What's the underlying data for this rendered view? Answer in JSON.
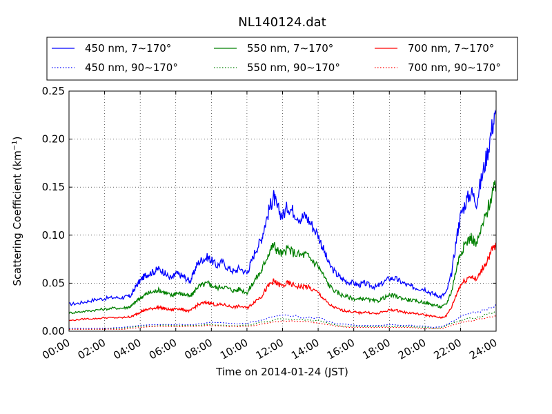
{
  "chart_data": {
    "type": "line",
    "title": "NL140124.dat",
    "xlabel": "Time on 2014-01-24 (JST)",
    "ylabel": "Scattering Coefficient (km",
    "ylabel_sup": "−1",
    "ylabel_end": ")",
    "xlim": [
      0,
      24
    ],
    "ylim": [
      0,
      0.25
    ],
    "grid": true,
    "legend_placement": "top, above plot, 3 columns",
    "x_ticks": [
      "00:00",
      "02:00",
      "04:00",
      "06:00",
      "08:00",
      "10:00",
      "12:00",
      "14:00",
      "16:00",
      "18:00",
      "20:00",
      "22:00",
      "24:00"
    ],
    "y_ticks": [
      "0.00",
      "0.05",
      "0.10",
      "0.15",
      "0.20",
      "0.25"
    ],
    "x_unit": "hours",
    "series": [
      {
        "name": "450 nm, 7∼170°",
        "color": "#0000ff",
        "style": "solid",
        "x": [
          0,
          0.5,
          1,
          1.5,
          2,
          2.5,
          3,
          3.3,
          3.5,
          3.7,
          3.9,
          4.1,
          4.3,
          4.5,
          4.8,
          5,
          5.3,
          5.5,
          5.8,
          6,
          6.3,
          6.5,
          6.8,
          7,
          7.2,
          7.5,
          7.8,
          8,
          8.3,
          8.6,
          9,
          9.3,
          9.6,
          10,
          10.2,
          10.5,
          10.8,
          11,
          11.3,
          11.5,
          11.7,
          12,
          12.3,
          12.6,
          13,
          13.3,
          13.6,
          14,
          14.3,
          14.6,
          15,
          15.3,
          15.6,
          16,
          16.3,
          16.6,
          17,
          17.3,
          17.6,
          18,
          18.3,
          18.6,
          19,
          19.3,
          19.6,
          20,
          20.3,
          20.6,
          20.9,
          21.2,
          21.5,
          21.8,
          22,
          22.3,
          22.6,
          22.9,
          23.2,
          23.5,
          23.8,
          24
        ],
        "y": [
          0.028,
          0.029,
          0.031,
          0.033,
          0.034,
          0.035,
          0.035,
          0.036,
          0.037,
          0.045,
          0.05,
          0.055,
          0.058,
          0.06,
          0.062,
          0.065,
          0.062,
          0.058,
          0.055,
          0.06,
          0.058,
          0.056,
          0.052,
          0.06,
          0.07,
          0.075,
          0.077,
          0.074,
          0.068,
          0.072,
          0.065,
          0.062,
          0.066,
          0.06,
          0.07,
          0.085,
          0.095,
          0.11,
          0.13,
          0.14,
          0.128,
          0.12,
          0.13,
          0.125,
          0.118,
          0.12,
          0.112,
          0.1,
          0.085,
          0.07,
          0.06,
          0.055,
          0.052,
          0.05,
          0.048,
          0.05,
          0.047,
          0.046,
          0.05,
          0.055,
          0.055,
          0.052,
          0.048,
          0.046,
          0.045,
          0.044,
          0.04,
          0.038,
          0.036,
          0.04,
          0.06,
          0.1,
          0.12,
          0.135,
          0.145,
          0.135,
          0.16,
          0.185,
          0.215,
          0.225
        ]
      },
      {
        "name": "550 nm, 7∼170°",
        "color": "#008000",
        "style": "solid",
        "x": [
          0,
          0.5,
          1,
          1.5,
          2,
          2.5,
          3,
          3.3,
          3.5,
          3.7,
          3.9,
          4.1,
          4.3,
          4.5,
          4.8,
          5,
          5.3,
          5.5,
          5.8,
          6,
          6.3,
          6.5,
          6.8,
          7,
          7.2,
          7.5,
          7.8,
          8,
          8.3,
          8.6,
          9,
          9.3,
          9.6,
          10,
          10.2,
          10.5,
          10.8,
          11,
          11.3,
          11.5,
          11.7,
          12,
          12.3,
          12.6,
          13,
          13.3,
          13.6,
          14,
          14.3,
          14.6,
          15,
          15.3,
          15.6,
          16,
          16.3,
          16.6,
          17,
          17.3,
          17.6,
          18,
          18.3,
          18.6,
          19,
          19.3,
          19.6,
          20,
          20.3,
          20.6,
          20.9,
          21.2,
          21.5,
          21.8,
          22,
          22.3,
          22.6,
          22.9,
          23.2,
          23.5,
          23.8,
          24
        ],
        "y": [
          0.019,
          0.02,
          0.021,
          0.022,
          0.023,
          0.024,
          0.024,
          0.025,
          0.026,
          0.03,
          0.033,
          0.036,
          0.038,
          0.04,
          0.041,
          0.043,
          0.041,
          0.039,
          0.037,
          0.04,
          0.039,
          0.038,
          0.036,
          0.04,
          0.046,
          0.048,
          0.05,
          0.048,
          0.045,
          0.047,
          0.044,
          0.042,
          0.044,
          0.04,
          0.046,
          0.055,
          0.062,
          0.072,
          0.085,
          0.09,
          0.084,
          0.08,
          0.086,
          0.082,
          0.079,
          0.08,
          0.075,
          0.068,
          0.058,
          0.048,
          0.041,
          0.038,
          0.036,
          0.034,
          0.033,
          0.034,
          0.032,
          0.031,
          0.034,
          0.037,
          0.037,
          0.035,
          0.033,
          0.032,
          0.031,
          0.03,
          0.028,
          0.027,
          0.025,
          0.028,
          0.042,
          0.068,
          0.082,
          0.092,
          0.098,
          0.09,
          0.108,
          0.125,
          0.145,
          0.15
        ]
      },
      {
        "name": "700 nm, 7∼170°",
        "color": "#ff0000",
        "style": "solid",
        "x": [
          0,
          0.5,
          1,
          1.5,
          2,
          2.5,
          3,
          3.3,
          3.5,
          3.7,
          3.9,
          4.1,
          4.3,
          4.5,
          4.8,
          5,
          5.3,
          5.5,
          5.8,
          6,
          6.3,
          6.5,
          6.8,
          7,
          7.2,
          7.5,
          7.8,
          8,
          8.3,
          8.6,
          9,
          9.3,
          9.6,
          10,
          10.2,
          10.5,
          10.8,
          11,
          11.3,
          11.5,
          11.7,
          12,
          12.3,
          12.6,
          13,
          13.3,
          13.6,
          14,
          14.3,
          14.6,
          15,
          15.3,
          15.6,
          16,
          16.3,
          16.6,
          17,
          17.3,
          17.6,
          18,
          18.3,
          18.6,
          19,
          19.3,
          19.6,
          20,
          20.3,
          20.6,
          20.9,
          21.2,
          21.5,
          21.8,
          22,
          22.3,
          22.6,
          22.9,
          23.2,
          23.5,
          23.8,
          24
        ],
        "y": [
          0.011,
          0.012,
          0.013,
          0.013,
          0.014,
          0.014,
          0.014,
          0.015,
          0.015,
          0.017,
          0.019,
          0.021,
          0.022,
          0.023,
          0.024,
          0.025,
          0.024,
          0.023,
          0.022,
          0.024,
          0.023,
          0.022,
          0.021,
          0.024,
          0.027,
          0.029,
          0.03,
          0.029,
          0.027,
          0.028,
          0.026,
          0.025,
          0.026,
          0.024,
          0.027,
          0.032,
          0.036,
          0.042,
          0.049,
          0.052,
          0.049,
          0.047,
          0.05,
          0.048,
          0.046,
          0.047,
          0.044,
          0.04,
          0.034,
          0.028,
          0.024,
          0.022,
          0.021,
          0.02,
          0.019,
          0.02,
          0.019,
          0.018,
          0.02,
          0.022,
          0.022,
          0.021,
          0.019,
          0.019,
          0.018,
          0.017,
          0.016,
          0.015,
          0.014,
          0.016,
          0.025,
          0.04,
          0.048,
          0.054,
          0.058,
          0.053,
          0.064,
          0.074,
          0.085,
          0.088
        ]
      },
      {
        "name": "450 nm, 90∼170°",
        "color": "#0000ff",
        "style": "dotted",
        "x": [
          0,
          2,
          3,
          4,
          5,
          6,
          7,
          8,
          9,
          10,
          11,
          12,
          13,
          14,
          15,
          16,
          17,
          18,
          19,
          20,
          20.5,
          21,
          21.5,
          22,
          22.5,
          23,
          23.5,
          24
        ],
        "y": [
          0.003,
          0.003,
          0.004,
          0.006,
          0.007,
          0.007,
          0.007,
          0.009,
          0.008,
          0.008,
          0.013,
          0.017,
          0.015,
          0.014,
          0.008,
          0.006,
          0.006,
          0.007,
          0.006,
          0.005,
          0.004,
          0.005,
          0.01,
          0.015,
          0.018,
          0.02,
          0.024,
          0.028
        ]
      },
      {
        "name": "550 nm, 90∼170°",
        "color": "#008000",
        "style": "dotted",
        "x": [
          0,
          2,
          3,
          4,
          5,
          6,
          7,
          8,
          9,
          10,
          11,
          12,
          13,
          14,
          15,
          16,
          17,
          18,
          19,
          20,
          20.5,
          21,
          21.5,
          22,
          22.5,
          23,
          23.5,
          24
        ],
        "y": [
          0.002,
          0.002,
          0.003,
          0.005,
          0.006,
          0.006,
          0.006,
          0.007,
          0.006,
          0.006,
          0.01,
          0.013,
          0.012,
          0.011,
          0.006,
          0.005,
          0.005,
          0.005,
          0.005,
          0.004,
          0.003,
          0.004,
          0.008,
          0.011,
          0.013,
          0.015,
          0.018,
          0.021
        ]
      },
      {
        "name": "700 nm, 90∼170°",
        "color": "#ff0000",
        "style": "dotted",
        "x": [
          0,
          2,
          3,
          4,
          5,
          6,
          7,
          8,
          9,
          10,
          11,
          12,
          13,
          14,
          15,
          16,
          17,
          18,
          19,
          20,
          20.5,
          21,
          21.5,
          22,
          22.5,
          23,
          23.5,
          24
        ],
        "y": [
          0.002,
          0.002,
          0.002,
          0.004,
          0.005,
          0.005,
          0.005,
          0.006,
          0.005,
          0.005,
          0.008,
          0.011,
          0.01,
          0.009,
          0.005,
          0.004,
          0.004,
          0.004,
          0.004,
          0.003,
          0.003,
          0.003,
          0.006,
          0.009,
          0.011,
          0.012,
          0.014,
          0.016
        ]
      }
    ]
  }
}
